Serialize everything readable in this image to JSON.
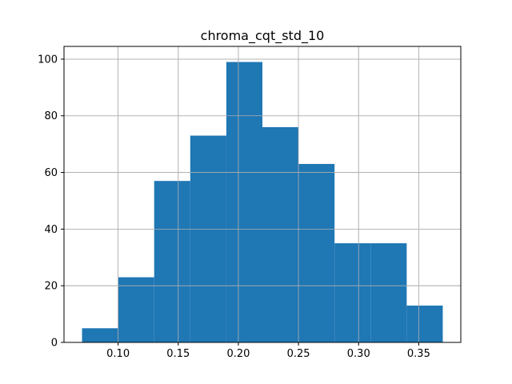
{
  "chart_data": {
    "type": "bar",
    "title": "chroma_cqt_std_10",
    "xlabel": "",
    "ylabel": "",
    "bin_edges": [
      0.07,
      0.1,
      0.13,
      0.16,
      0.19,
      0.22,
      0.25,
      0.28,
      0.31,
      0.34,
      0.37
    ],
    "values": [
      5,
      23,
      57,
      73,
      99,
      76,
      63,
      35,
      35,
      13
    ],
    "xlim": [
      0.055,
      0.385
    ],
    "ylim": [
      0,
      104.5
    ],
    "xticks": [
      0.1,
      0.15,
      0.2,
      0.25,
      0.3,
      0.35
    ],
    "xtick_labels": [
      "0.10",
      "0.15",
      "0.20",
      "0.25",
      "0.30",
      "0.35"
    ],
    "yticks": [
      0,
      20,
      40,
      60,
      80,
      100
    ],
    "ytick_labels": [
      "0",
      "20",
      "40",
      "60",
      "80",
      "100"
    ],
    "grid": true,
    "bar_color": "#1f77b4",
    "grid_color": "#b0b0b0"
  }
}
